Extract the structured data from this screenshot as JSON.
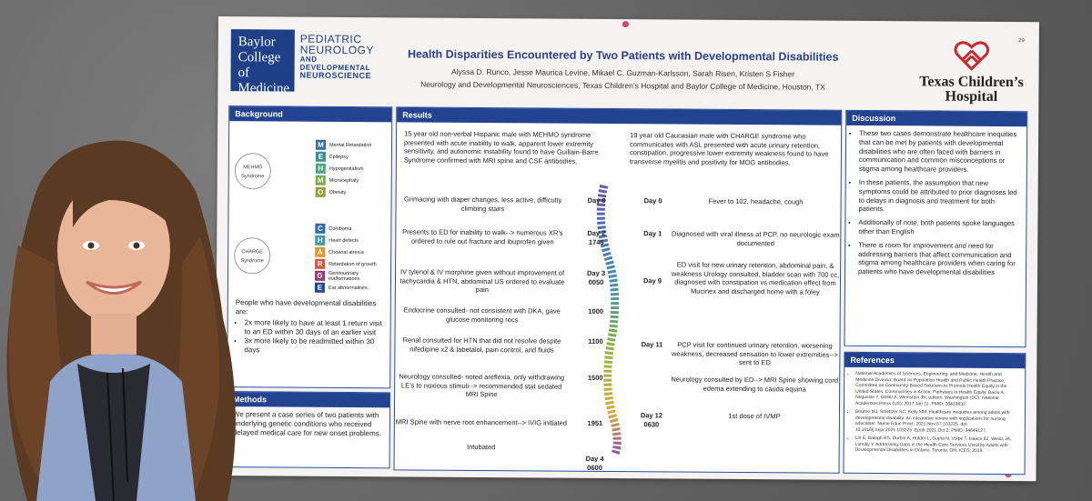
{
  "header": {
    "bcm_logo": [
      "Baylor",
      "College of",
      "Medicine"
    ],
    "bcm_sub": [
      "PEDIATRIC",
      "NEUROLOGY",
      "AND DEVELOPMENTAL",
      "NEUROSCIENCE"
    ],
    "title": "Health Disparities Encountered by Two Patients with Developmental Disabilities",
    "authors": "Alyssa D. Runco, Jesse Maurica Levine, Mikael C. Guzman-Karlsson, Sarah Risen, Kristen S Fisher",
    "affiliation": "Neurology and Developmental Neurosciences, Texas Children’s Hospital and Baylor College of Medicine, Houston, TX",
    "tch_name_1": "Texas Children’s",
    "tch_name_2": "Hospital",
    "page_num": "29"
  },
  "background": {
    "heading": "Background",
    "mehmo_label": "MEHMO Syndrome",
    "mehmo": [
      {
        "letter": "M",
        "word": "Mental Retardation",
        "color": "#2f6fa6"
      },
      {
        "letter": "E",
        "word": "Epilepsy",
        "color": "#3a8f9a"
      },
      {
        "letter": "H",
        "word": "Hypogenitalism",
        "color": "#4aa57a"
      },
      {
        "letter": "M",
        "word": "Microcephaly",
        "color": "#79ad4e"
      },
      {
        "letter": "O",
        "word": "Obesity",
        "color": "#9a9a3a"
      }
    ],
    "charge_label": "CHARGE Syndrome",
    "charge": [
      {
        "letter": "C",
        "word": "Coloboma",
        "color": "#2e6aa8"
      },
      {
        "letter": "H",
        "word": "Heart defects",
        "color": "#3d9aa0"
      },
      {
        "letter": "A",
        "word": "Choanal atresia",
        "color": "#e29a2b"
      },
      {
        "letter": "R",
        "word": "Retardation of growth",
        "color": "#d8563a"
      },
      {
        "letter": "G",
        "word": "Genitourinary malformations",
        "color": "#9c3a78"
      },
      {
        "letter": "E",
        "word": "Ear abnormalities",
        "color": "#234a8a"
      }
    ],
    "intro": "People who have developmental disabilities are:",
    "bullets": [
      "2x more likely to have at least 1 return visit to an ED within 30 days of an earlier visit",
      "3x more likely to be readmitted within 30 days"
    ]
  },
  "methods": {
    "heading": "Methods",
    "text": "We present a case series of two patients with underlying genetic conditions who received delayed medical care for new onset problems."
  },
  "results": {
    "heading": "Results",
    "case1": "15 year old non-verbal Hispanic male with MEHMO syndrome presented with acute inability to walk, apparent lower extremity sensitivity, and autonomic instability found to have Guillain-Barre Syndrome confirmed with MRI spine and CSF antibodies.",
    "case2": "19 year old Caucasian male with CHARGE syndrome who communicates with ASL presented with acute urinary retention, constipation, progressive lower extremity weakness found to have transverse myelitis and positivity for MOG antibodies.",
    "left_events": [
      {
        "text": "Grimacing with diaper changes, less active, difficulty climbing stairs",
        "day": "Day 0"
      },
      {
        "text": "Presents to ED for inability to walk--> numerous XR’s ordered to rule out fracture and ibuprofen given",
        "day": "Day 2\n1745"
      },
      {
        "text": "IV tylenol & IV morphine given without improvement of tachycardia & HTN, abdominal US ordered to evaluate pain",
        "day": "Day 3\n0050"
      },
      {
        "text": "Endocrine consulted- not consistent with DKA, gave glucose monitoring recs",
        "day": "1000"
      },
      {
        "text": "Renal consulted for HTN that did not resolve despite nifedipine x2 & labetalol, pain control, and fluids",
        "day": "1100"
      },
      {
        "text": "Neurology consulted- noted areflexia, only withdrawing LE’s to noxious stimuli--> recommended stat sedated MRI Spine",
        "day": "1500"
      },
      {
        "text": "MRI Spine with nerve root enhancement--> IVIG initiated",
        "day": "1951"
      },
      {
        "text": "Intubated",
        "day": "Day 4\n0600"
      }
    ],
    "right_events": [
      {
        "text": "Fever to 102, headache, cough",
        "day": "Day 0"
      },
      {
        "text": "Diagnosed with viral illness at PCP, no neurologic exam documented",
        "day": "Day 1"
      },
      {
        "text": "ED visit for new urinary retention, abdominal pain, & weakness Urology consulted, bladder scan with 700 cc, diagnosed with constipation vs medication effect from Mucinex and discharged home with a foley",
        "day": "Day 9"
      },
      {
        "text": "PCP visit for continued urinary retention, worsening weakness, decreased sensation to lower extremities--> sent to ED",
        "day": "Day 11"
      },
      {
        "text": "Neurology consulted by ED--> MRI Spine showing cord edema extending to cauda equina",
        "day": ""
      },
      {
        "text": "1st dose of IVMP",
        "day": "Day 12\n0630"
      }
    ]
  },
  "discussion": {
    "heading": "Discussion",
    "bullets": [
      "These two cases demonstrate healthcare inequities that can be met by patients with developmental disabilities who are often faced with barriers in communication and common misconceptions or stigma among healthcare providers.",
      "In these patients, the assumption that new symptoms could be attributed to prior diagnoses led to delays in diagnosis and treatment for both patients.",
      "Additionally of note, both patients spoke languages other than English",
      "There is room for improvement and need for addressing barriers that affect communication and stigma among healthcare providers when caring for patients who have developmental disabilities"
    ]
  },
  "references": {
    "heading": "References",
    "items": [
      "National Academies of Sciences, Engineering, and Medicine; Health and Medicine Division; Board on Population Health and Public Health Practice; Committee on Community-Based Solutions to Promote Health Equity in the United States. Communities in Action: Pathways to Health Equity. Baciu A, Negussie Y, Geller A, Weinstein JN, editors. Washington (DC): National Academies Press (US); 2017 Jan 11. PMID: 28418632",
      "Bourne MJ, Smeltzer SC, Kelly MM. Healthcare inequities among adults with developmental disability: An integrative review with implications for nursing education. Nurse Educ Pract. 2021 Nov;57:103225. doi: 10.1016/j.nepr.2021.103225. Epub 2021 Oct 2. PMID: 34649127.",
      "Lin E, Balogh RS, Durbin A, Holder L, Gupta N, Volpe T, Isaacs BJ, Weiss JA, Lunsky Y. Addressing Gaps in the Health Care Services Used by Adults with Developmental Disabilities in Ontario. Toronto, ON: ICES; 2019."
    ]
  }
}
